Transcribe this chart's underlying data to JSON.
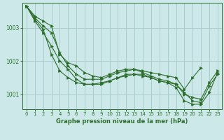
{
  "background_color": "#cce8e8",
  "grid_color": "#aacccc",
  "line_color": "#2d6e2d",
  "marker_color": "#2d6e2d",
  "xlabel": "Graphe pression niveau de la mer (hPa)",
  "xlim": [
    -0.5,
    23.5
  ],
  "ylim": [
    1000.55,
    1003.75
  ],
  "yticks": [
    1001,
    1002,
    1003
  ],
  "xticks": [
    0,
    1,
    2,
    3,
    4,
    5,
    6,
    7,
    8,
    9,
    10,
    11,
    12,
    13,
    14,
    15,
    16,
    17,
    18,
    19,
    20,
    21,
    22,
    23
  ],
  "series": [
    [
      1003.65,
      1003.35,
      1003.2,
      1003.05,
      1002.2,
      1001.95,
      1001.85,
      1001.65,
      1001.55,
      1001.5,
      1001.6,
      1001.7,
      1001.75,
      1001.75,
      1001.7,
      1001.65,
      1001.6,
      1001.55,
      1001.5,
      1001.15,
      1001.5,
      1001.8,
      null,
      null
    ],
    [
      1003.65,
      1003.3,
      1003.05,
      1002.85,
      1002.25,
      1001.85,
      1001.6,
      1001.45,
      1001.45,
      1001.45,
      1001.55,
      1001.65,
      1001.7,
      1001.75,
      1001.65,
      1001.55,
      1001.45,
      1001.4,
      1001.3,
      1001.0,
      1000.9,
      1000.85,
      1001.35,
      1001.7
    ],
    [
      1003.65,
      1003.25,
      1002.95,
      1002.2,
      1001.7,
      1001.5,
      1001.35,
      1001.3,
      1001.3,
      1001.3,
      1001.4,
      1001.5,
      1001.55,
      1001.6,
      1001.6,
      1001.5,
      1001.4,
      1001.35,
      1001.2,
      1000.8,
      1000.7,
      1000.7,
      1001.05,
      1001.65
    ],
    [
      1003.65,
      1003.2,
      1002.85,
      1002.45,
      1002.0,
      1001.75,
      1001.45,
      1001.3,
      1001.3,
      1001.35,
      1001.4,
      1001.5,
      1001.6,
      1001.6,
      1001.55,
      1001.5,
      1001.4,
      1001.35,
      1001.3,
      1001.05,
      1000.8,
      1000.75,
      1001.25,
      1001.6
    ]
  ]
}
